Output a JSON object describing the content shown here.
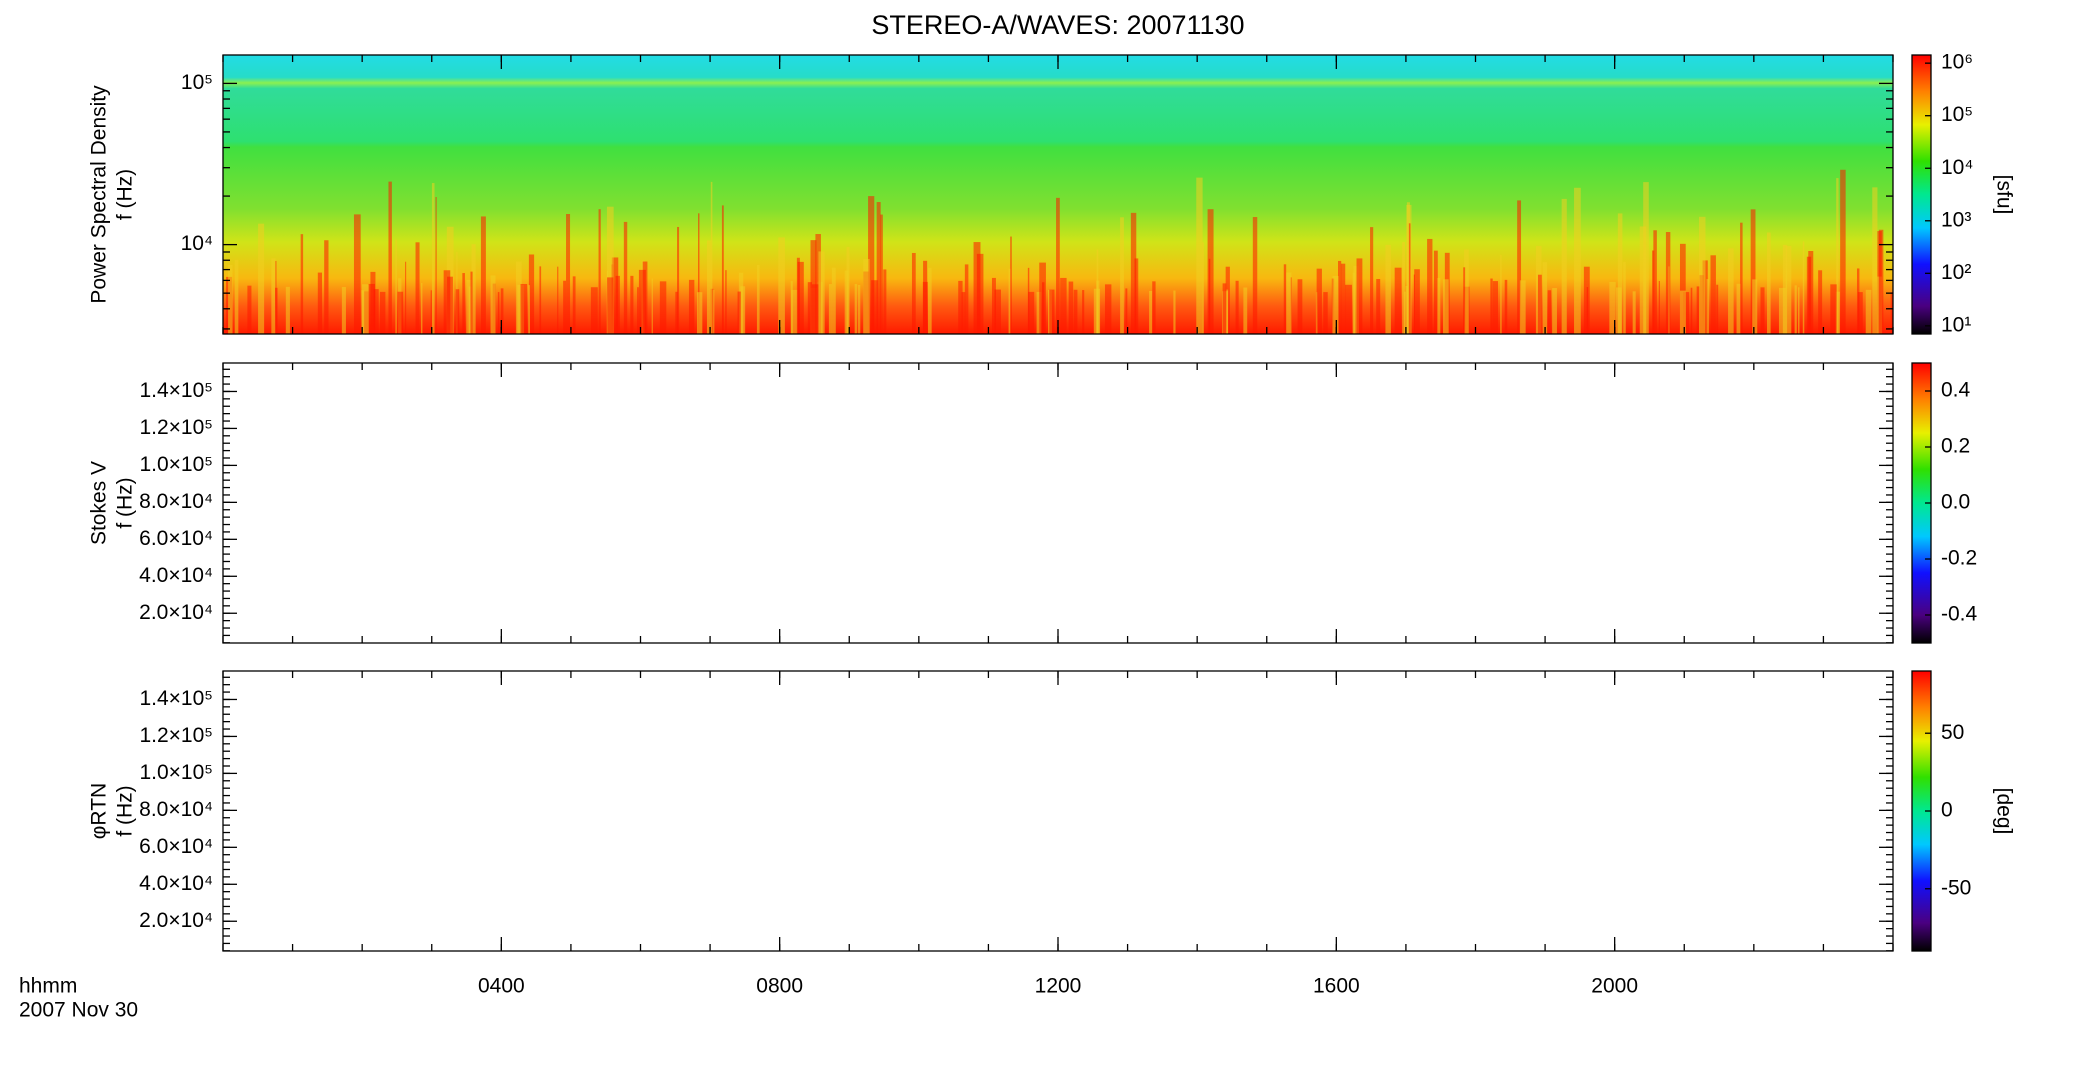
{
  "chart_data": [
    {
      "type": "spectrogram",
      "title": "STEREO-A/WAVES: 20071130",
      "ylabel": [
        "Power Spectral Density",
        "f (Hz)"
      ],
      "log_y": true,
      "xlim": [
        0,
        24
      ],
      "ylim": [
        2790,
        150000
      ],
      "yticks": [
        {
          "value": 10000,
          "label": "10⁴"
        },
        {
          "value": 100000,
          "label": "10⁵"
        }
      ],
      "colorbar_label": "[sfu]",
      "log_c": true,
      "clim": [
        7,
        1430000
      ],
      "cticks": [
        {
          "value": 10,
          "label": "10¹"
        },
        {
          "value": 100,
          "label": "10²"
        },
        {
          "value": 1000,
          "label": "10³"
        },
        {
          "value": 10000,
          "label": "10⁴"
        },
        {
          "value": 100000,
          "label": "10⁵"
        },
        {
          "value": 1000000,
          "label": "10⁶"
        }
      ]
    },
    {
      "type": "spectrogram",
      "ylabel": [
        "Stokes V",
        "f (Hz)"
      ],
      "log_y": false,
      "xlim": [
        0,
        24
      ],
      "ylim": [
        3900,
        155400
      ],
      "yticks": [
        {
          "value": 20000,
          "label": "2.0×10⁴"
        },
        {
          "value": 40000,
          "label": "4.0×10⁴"
        },
        {
          "value": 60000,
          "label": "6.0×10⁴"
        },
        {
          "value": 80000,
          "label": "8.0×10⁴"
        },
        {
          "value": 100000,
          "label": "1.0×10⁵"
        },
        {
          "value": 120000,
          "label": "1.2×10⁵"
        },
        {
          "value": 140000,
          "label": "1.4×10⁵"
        }
      ],
      "log_c": false,
      "clim": [
        -0.5,
        0.5
      ],
      "cticks": [
        -0.4,
        -0.2,
        {
          "value": 0,
          "label": "0.0"
        },
        0.2,
        0.4
      ]
    },
    {
      "type": "spectrogram",
      "ylabel": [
        "φRTN",
        "f (Hz)"
      ],
      "log_y": false,
      "xlim": [
        0,
        24
      ],
      "ylim": [
        3900,
        155400
      ],
      "yticks": [
        {
          "value": 20000,
          "label": "2.0×10⁴"
        },
        {
          "value": 40000,
          "label": "4.0×10⁴"
        },
        {
          "value": 60000,
          "label": "6.0×10⁴"
        },
        {
          "value": 80000,
          "label": "8.0×10⁴"
        },
        {
          "value": 100000,
          "label": "1.0×10⁵"
        },
        {
          "value": 120000,
          "label": "1.2×10⁵"
        },
        {
          "value": 140000,
          "label": "1.4×10⁵"
        }
      ],
      "colorbar_label": "[deg]",
      "log_c": false,
      "clim": [
        -90,
        90
      ],
      "cticks": [
        -50,
        0,
        50
      ],
      "xlabel": [
        "hhmm",
        "2007 Nov 30"
      ],
      "xticks": [
        {
          "value": 4,
          "label": "0400"
        },
        {
          "value": 8,
          "label": "0800"
        },
        {
          "value": 12,
          "label": "1200"
        },
        {
          "value": 16,
          "label": "1600"
        },
        {
          "value": 20,
          "label": "2000"
        }
      ]
    }
  ]
}
